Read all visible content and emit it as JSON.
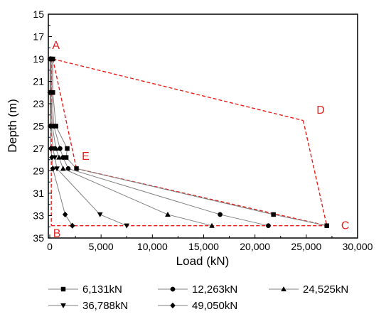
{
  "chart_data": {
    "type": "line",
    "xlabel": "Load (kN)",
    "ylabel": "Depth (m)",
    "xlim": [
      0,
      30000
    ],
    "ylim": [
      15,
      35
    ],
    "y_inverted": true,
    "x_ticks": [
      0,
      5000,
      10000,
      15000,
      20000,
      25000,
      30000
    ],
    "x_tick_labels": [
      "0",
      "5,000",
      "10,000",
      "15,000",
      "20,000",
      "25,000",
      "30,000"
    ],
    "y_ticks": [
      15,
      17,
      19,
      21,
      23,
      25,
      27,
      29,
      31,
      33,
      35
    ],
    "y_tick_labels": [
      "15",
      "17",
      "19",
      "21",
      "23",
      "25",
      "27",
      "29",
      "31",
      "33",
      "35"
    ],
    "line_color": "#808080",
    "marker_color": "#000000",
    "envelope_color": "#e8201c",
    "series": [
      {
        "name": "6,131kN",
        "marker": "square",
        "points": [
          [
            300,
            19.0
          ],
          [
            300,
            22.0
          ],
          [
            600,
            25.0
          ],
          [
            1700,
            27.0
          ],
          [
            1600,
            27.8
          ],
          [
            2600,
            28.8
          ],
          [
            21800,
            32.9
          ],
          [
            27000,
            33.9
          ]
        ]
      },
      {
        "name": "12,263kN",
        "marker": "circle",
        "points": [
          [
            200,
            19.0
          ],
          [
            200,
            22.0
          ],
          [
            400,
            25.0
          ],
          [
            1000,
            27.0
          ],
          [
            1300,
            27.8
          ],
          [
            1800,
            28.8
          ],
          [
            16600,
            32.9
          ],
          [
            21300,
            33.9
          ]
        ]
      },
      {
        "name": "24,525kN",
        "marker": "triangle-up",
        "points": [
          [
            100,
            19.0
          ],
          [
            100,
            22.0
          ],
          [
            250,
            25.0
          ],
          [
            600,
            27.0
          ],
          [
            900,
            27.8
          ],
          [
            1300,
            28.8
          ],
          [
            11500,
            32.9
          ],
          [
            15800,
            33.9
          ]
        ]
      },
      {
        "name": "36,788kN",
        "marker": "triangle-down",
        "points": [
          [
            50,
            19.0
          ],
          [
            50,
            22.0
          ],
          [
            150,
            25.0
          ],
          [
            300,
            27.0
          ],
          [
            500,
            27.8
          ],
          [
            700,
            28.8
          ],
          [
            4900,
            32.9
          ],
          [
            7500,
            33.9
          ]
        ]
      },
      {
        "name": "49,050kN",
        "marker": "diamond",
        "points": [
          [
            20,
            19.0
          ],
          [
            20,
            22.0
          ],
          [
            50,
            25.0
          ],
          [
            100,
            27.0
          ],
          [
            200,
            27.8
          ],
          [
            300,
            28.8
          ],
          [
            1500,
            32.9
          ],
          [
            2200,
            33.9
          ]
        ]
      }
    ],
    "envelope": [
      {
        "from": "A",
        "to": "D",
        "x": [
          300,
          24700
        ],
        "y": [
          19.0,
          24.5
        ]
      },
      {
        "from": "D",
        "to": "C",
        "x": [
          24700,
          27000
        ],
        "y": [
          24.5,
          33.9
        ]
      },
      {
        "from": "A",
        "to": "E",
        "x": [
          300,
          2600
        ],
        "y": [
          19.0,
          28.8
        ]
      },
      {
        "from": "E",
        "to": "C",
        "x": [
          2600,
          27000
        ],
        "y": [
          28.8,
          33.9
        ]
      },
      {
        "from": "A",
        "to": "B",
        "x": [
          150,
          150
        ],
        "y": [
          19.0,
          33.9
        ]
      },
      {
        "from": "B",
        "to": "C",
        "x": [
          150,
          27000
        ],
        "y": [
          33.9,
          33.9
        ]
      }
    ],
    "annotations": [
      {
        "text": "A",
        "x": 600,
        "y": 18.1
      },
      {
        "text": "D",
        "x": 26400,
        "y": 23.9
      },
      {
        "text": "E",
        "x": 3500,
        "y": 28.0
      },
      {
        "text": "B",
        "x": 700,
        "y": 34.9
      },
      {
        "text": "C",
        "x": 28800,
        "y": 34.2
      }
    ],
    "legend_placement": "bottom"
  }
}
